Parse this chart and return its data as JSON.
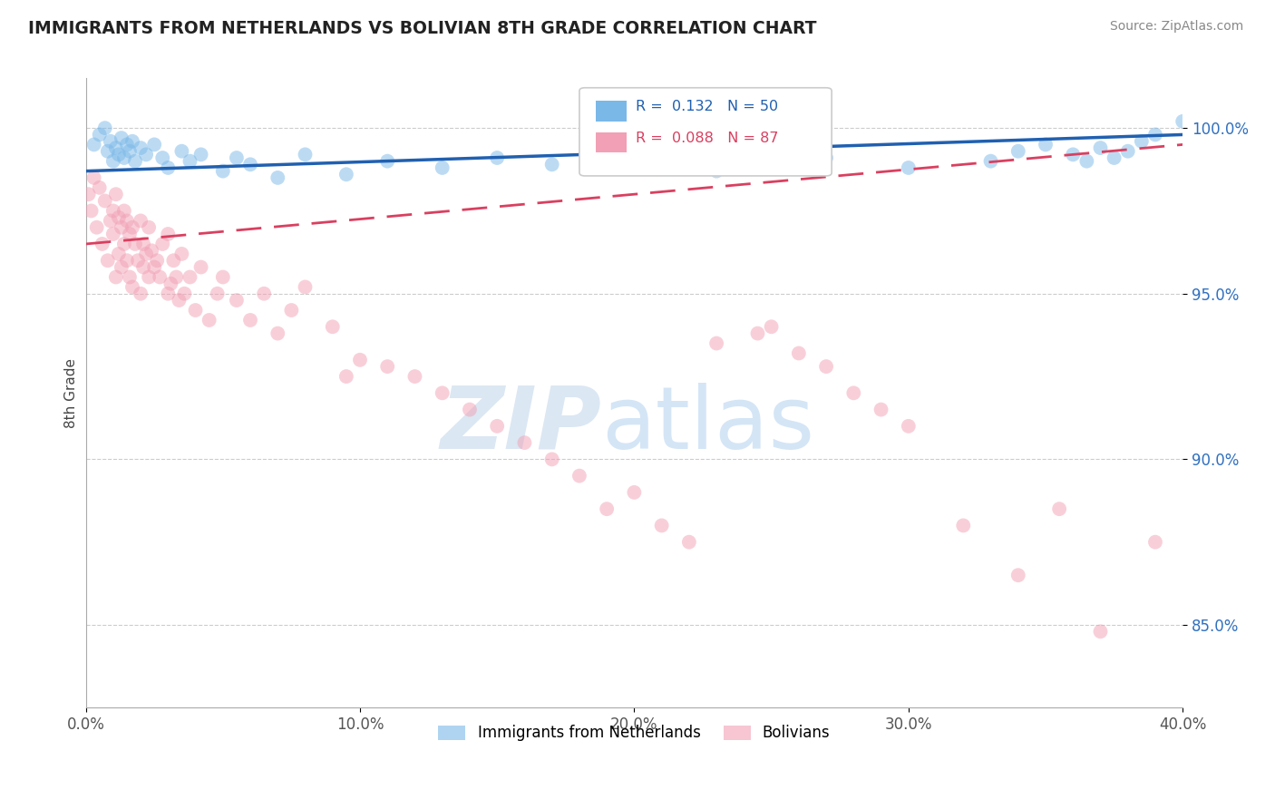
{
  "title": "IMMIGRANTS FROM NETHERLANDS VS BOLIVIAN 8TH GRADE CORRELATION CHART",
  "source_text": "Source: ZipAtlas.com",
  "ylabel": "8th Grade",
  "xlim": [
    0.0,
    40.0
  ],
  "ylim": [
    82.5,
    101.5
  ],
  "yticks": [
    85.0,
    90.0,
    95.0,
    100.0
  ],
  "ytick_labels": [
    "85.0%",
    "90.0%",
    "95.0%",
    "100.0%"
  ],
  "xticks": [
    0.0,
    10.0,
    20.0,
    30.0,
    40.0
  ],
  "xtick_labels": [
    "0.0%",
    "10.0%",
    "20.0%",
    "30.0%",
    "40.0%"
  ],
  "legend_R1": "0.132",
  "legend_N1": "50",
  "legend_R2": "0.088",
  "legend_N2": "87",
  "series1_name": "Immigrants from Netherlands",
  "series2_name": "Bolivians",
  "color1": "#7ab8e8",
  "color2": "#f2a0b5",
  "trendline1_color": "#2060b0",
  "trendline2_color": "#d94060",
  "watermark_zip": "ZIP",
  "watermark_atlas": "atlas",
  "scatter1_x": [
    0.3,
    0.5,
    0.7,
    0.8,
    0.9,
    1.0,
    1.1,
    1.2,
    1.3,
    1.4,
    1.5,
    1.6,
    1.7,
    1.8,
    2.0,
    2.2,
    2.5,
    2.8,
    3.0,
    3.5,
    3.8,
    4.2,
    5.0,
    5.5,
    6.0,
    7.0,
    8.0,
    9.5,
    11.0,
    13.0,
    15.0,
    17.0,
    19.0,
    21.0,
    23.0,
    25.0,
    26.0,
    27.0,
    30.0,
    33.0,
    34.0,
    35.0,
    36.0,
    36.5,
    37.0,
    37.5,
    38.0,
    38.5,
    39.0,
    40.0
  ],
  "scatter1_y": [
    99.5,
    99.8,
    100.0,
    99.3,
    99.6,
    99.0,
    99.4,
    99.2,
    99.7,
    99.1,
    99.5,
    99.3,
    99.6,
    99.0,
    99.4,
    99.2,
    99.5,
    99.1,
    98.8,
    99.3,
    99.0,
    99.2,
    98.7,
    99.1,
    98.9,
    98.5,
    99.2,
    98.6,
    99.0,
    98.8,
    99.1,
    98.9,
    99.3,
    99.0,
    98.7,
    99.2,
    99.4,
    99.1,
    98.8,
    99.0,
    99.3,
    99.5,
    99.2,
    99.0,
    99.4,
    99.1,
    99.3,
    99.6,
    99.8,
    100.2
  ],
  "scatter2_x": [
    0.1,
    0.2,
    0.3,
    0.4,
    0.5,
    0.6,
    0.7,
    0.8,
    0.9,
    1.0,
    1.0,
    1.1,
    1.1,
    1.2,
    1.2,
    1.3,
    1.3,
    1.4,
    1.4,
    1.5,
    1.5,
    1.6,
    1.6,
    1.7,
    1.7,
    1.8,
    1.9,
    2.0,
    2.0,
    2.1,
    2.1,
    2.2,
    2.3,
    2.3,
    2.4,
    2.5,
    2.6,
    2.7,
    2.8,
    3.0,
    3.0,
    3.1,
    3.2,
    3.3,
    3.4,
    3.5,
    3.6,
    3.8,
    4.0,
    4.2,
    4.5,
    4.8,
    5.0,
    5.5,
    6.0,
    6.5,
    7.0,
    7.5,
    8.0,
    9.0,
    9.5,
    10.0,
    11.0,
    12.0,
    13.0,
    14.0,
    15.0,
    16.0,
    17.0,
    18.0,
    19.0,
    20.0,
    21.0,
    22.0,
    23.0,
    24.5,
    25.0,
    26.0,
    27.0,
    28.0,
    29.0,
    30.0,
    32.0,
    34.0,
    35.5,
    37.0,
    39.0
  ],
  "scatter2_y": [
    98.0,
    97.5,
    98.5,
    97.0,
    98.2,
    96.5,
    97.8,
    96.0,
    97.2,
    97.5,
    96.8,
    98.0,
    95.5,
    97.3,
    96.2,
    97.0,
    95.8,
    96.5,
    97.5,
    96.0,
    97.2,
    95.5,
    96.8,
    97.0,
    95.2,
    96.5,
    96.0,
    97.2,
    95.0,
    96.5,
    95.8,
    96.2,
    95.5,
    97.0,
    96.3,
    95.8,
    96.0,
    95.5,
    96.5,
    95.0,
    96.8,
    95.3,
    96.0,
    95.5,
    94.8,
    96.2,
    95.0,
    95.5,
    94.5,
    95.8,
    94.2,
    95.0,
    95.5,
    94.8,
    94.2,
    95.0,
    93.8,
    94.5,
    95.2,
    94.0,
    92.5,
    93.0,
    92.8,
    92.5,
    92.0,
    91.5,
    91.0,
    90.5,
    90.0,
    89.5,
    88.5,
    89.0,
    88.0,
    87.5,
    93.5,
    93.8,
    94.0,
    93.2,
    92.8,
    92.0,
    91.5,
    91.0,
    88.0,
    86.5,
    88.5,
    84.8,
    87.5
  ],
  "trendline1_x": [
    0.0,
    40.0
  ],
  "trendline1_y": [
    98.7,
    99.8
  ],
  "trendline2_x": [
    0.0,
    40.0
  ],
  "trendline2_y": [
    96.5,
    99.5
  ]
}
